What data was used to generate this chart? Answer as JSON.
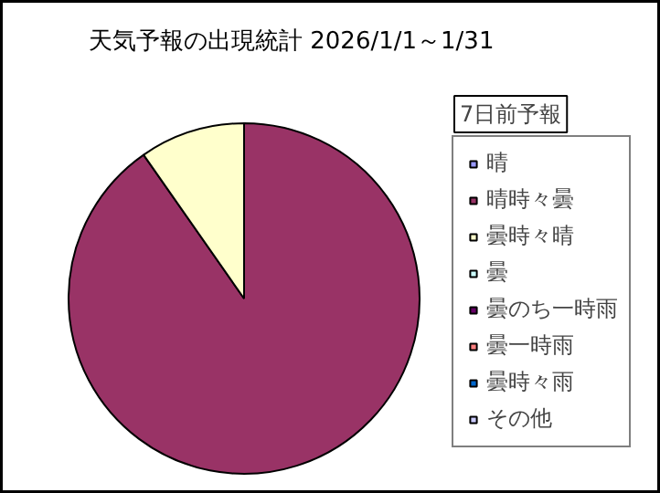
{
  "chart_data": {
    "type": "pie",
    "title": "天気予報の出現統計 2026/1/1～1/31",
    "legend_title": "7日前予報",
    "categories": [
      "晴",
      "晴時々曇",
      "曇時々晴",
      "曇",
      "曇のち一時雨",
      "曇一時雨",
      "曇時々雨",
      "その他"
    ],
    "values": [
      0,
      90.3,
      9.7,
      0,
      0,
      0,
      0,
      0
    ],
    "colors": [
      "#9999ff",
      "#993366",
      "#ffffcc",
      "#ccffff",
      "#660066",
      "#ff8080",
      "#0066cc",
      "#ccccff"
    ],
    "legend": "right"
  }
}
